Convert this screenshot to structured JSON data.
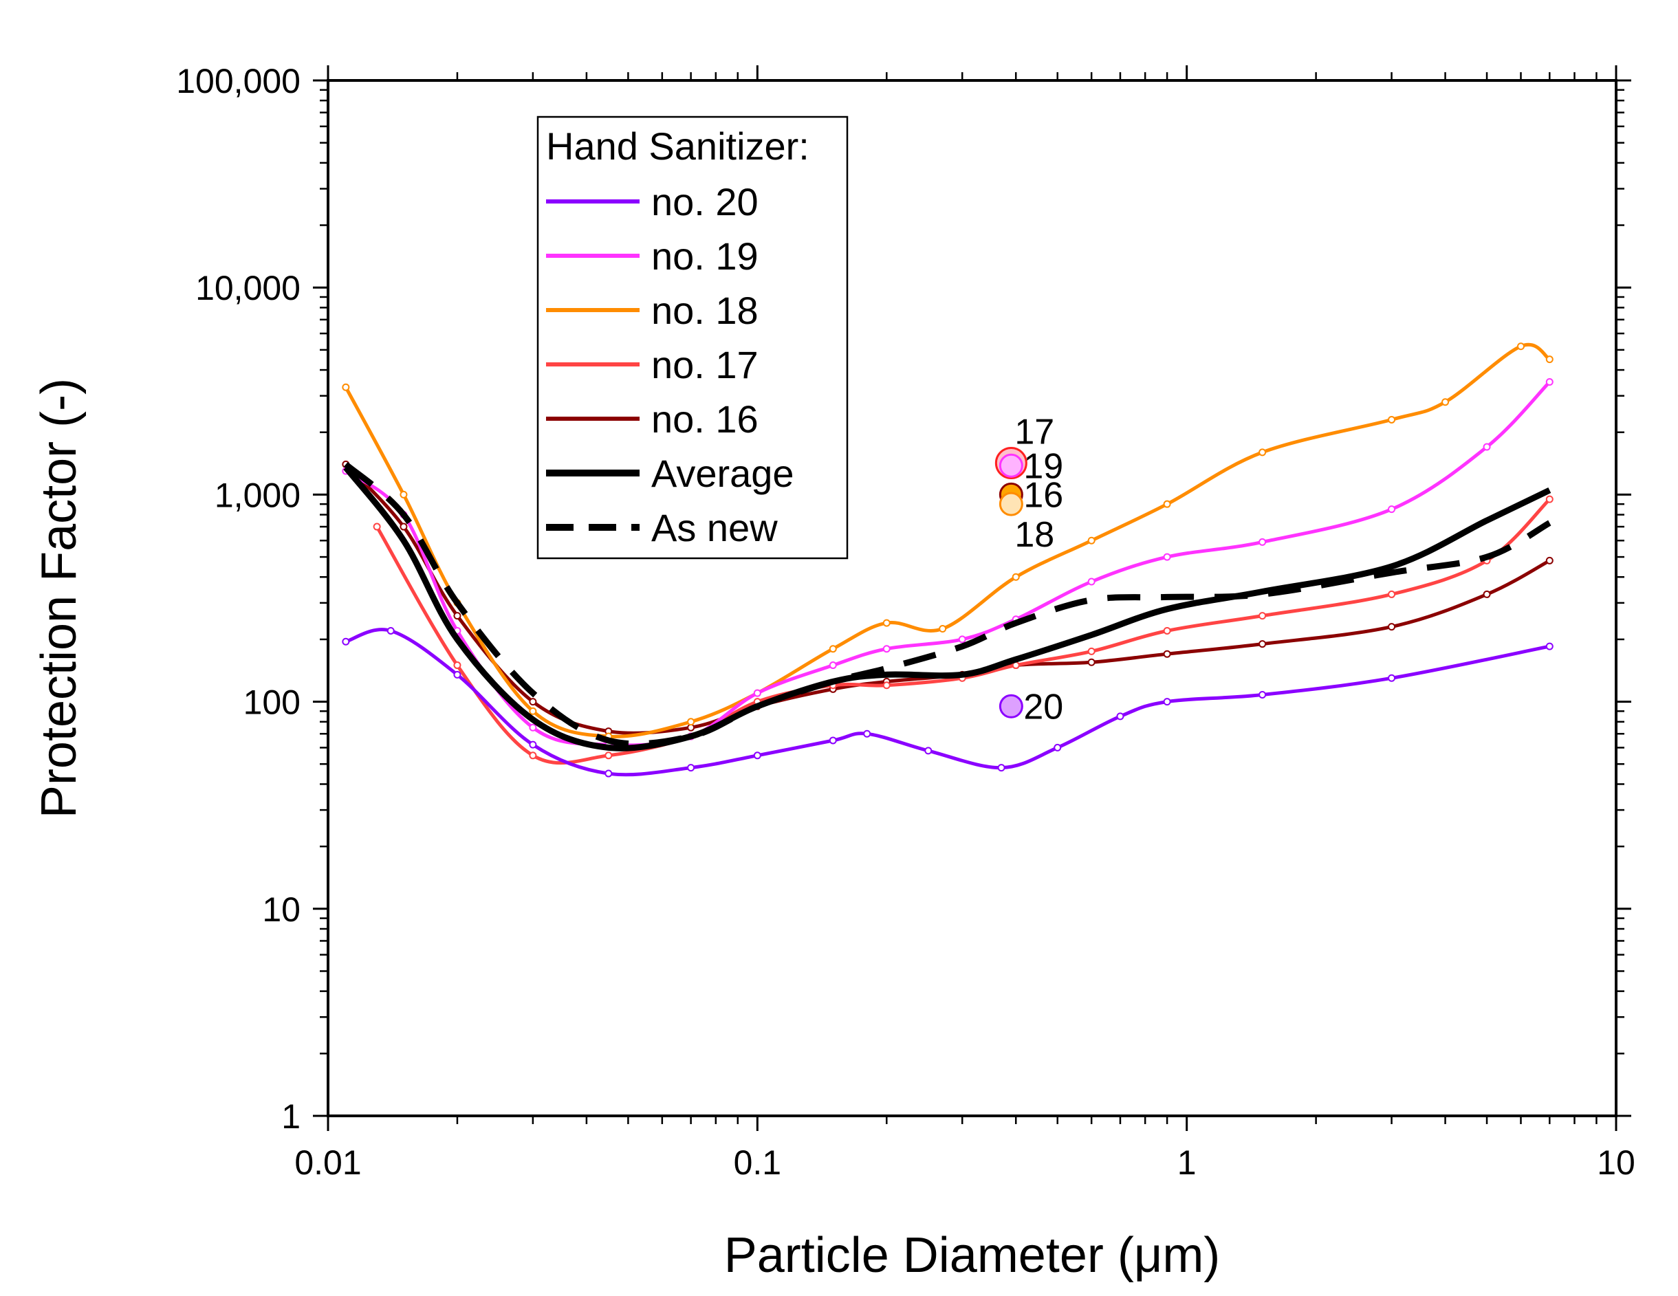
{
  "chart_data": {
    "type": "line",
    "xlabel": "Particle Diameter (μm)",
    "ylabel": "Protection Factor (-)",
    "x_scale": "log",
    "y_scale": "log",
    "xlim": [
      0.01,
      10
    ],
    "ylim": [
      1,
      100000
    ],
    "x_ticks": [
      {
        "value": 0.01,
        "label": "0.01"
      },
      {
        "value": 0.1,
        "label": "0.1"
      },
      {
        "value": 1,
        "label": "1"
      },
      {
        "value": 10,
        "label": "10"
      }
    ],
    "y_ticks": [
      {
        "value": 1,
        "label": "1"
      },
      {
        "value": 10,
        "label": "10"
      },
      {
        "value": 100,
        "label": "100"
      },
      {
        "value": 1000,
        "label": "1,000"
      },
      {
        "value": 10000,
        "label": "10,000"
      },
      {
        "value": 100000,
        "label": "100,000"
      }
    ],
    "grid": false,
    "legend": {
      "title": "Hand Sanitizer:",
      "position": "top-left"
    },
    "series": [
      {
        "name": "no. 20",
        "color": "#8B00FF",
        "style": "solid",
        "x": [
          0.011,
          0.014,
          0.02,
          0.03,
          0.045,
          0.07,
          0.1,
          0.15,
          0.18,
          0.25,
          0.37,
          0.5,
          0.7,
          0.9,
          1.5,
          3,
          7
        ],
        "y": [
          195,
          220,
          135,
          62,
          45,
          48,
          55,
          65,
          70,
          58,
          48,
          60,
          85,
          100,
          108,
          130,
          185
        ]
      },
      {
        "name": "no. 19",
        "color": "#FF33FF",
        "style": "solid",
        "x": [
          0.011,
          0.015,
          0.02,
          0.03,
          0.045,
          0.07,
          0.1,
          0.15,
          0.2,
          0.3,
          0.4,
          0.6,
          0.9,
          1.5,
          3,
          5,
          7
        ],
        "y": [
          1300,
          800,
          220,
          75,
          62,
          68,
          110,
          150,
          180,
          200,
          250,
          380,
          500,
          590,
          850,
          1700,
          3500
        ]
      },
      {
        "name": "no. 18",
        "color": "#FF8C00",
        "style": "solid",
        "x": [
          0.011,
          0.015,
          0.02,
          0.03,
          0.045,
          0.07,
          0.1,
          0.15,
          0.2,
          0.27,
          0.4,
          0.6,
          0.9,
          1.5,
          3,
          4,
          6,
          7
        ],
        "y": [
          3300,
          1000,
          300,
          90,
          68,
          80,
          110,
          180,
          240,
          225,
          400,
          600,
          900,
          1600,
          2300,
          2800,
          5200,
          4500
        ]
      },
      {
        "name": "no. 17",
        "color": "#FF4444",
        "style": "solid",
        "x": [
          0.013,
          0.02,
          0.03,
          0.045,
          0.07,
          0.1,
          0.15,
          0.2,
          0.3,
          0.4,
          0.6,
          0.9,
          1.5,
          3,
          5,
          7
        ],
        "y": [
          700,
          150,
          55,
          55,
          68,
          100,
          120,
          120,
          130,
          150,
          175,
          220,
          260,
          330,
          480,
          950
        ]
      },
      {
        "name": "no. 16",
        "color": "#8B0000",
        "style": "solid",
        "x": [
          0.011,
          0.015,
          0.02,
          0.03,
          0.045,
          0.07,
          0.1,
          0.15,
          0.2,
          0.3,
          0.4,
          0.6,
          0.9,
          1.5,
          3,
          5,
          7
        ],
        "y": [
          1400,
          700,
          260,
          100,
          72,
          75,
          95,
          115,
          125,
          135,
          150,
          155,
          170,
          190,
          230,
          330,
          480
        ]
      },
      {
        "name": "Average",
        "color": "#000000",
        "style": "solid",
        "x": [
          0.011,
          0.015,
          0.02,
          0.03,
          0.045,
          0.07,
          0.1,
          0.15,
          0.2,
          0.3,
          0.4,
          0.6,
          0.9,
          1.5,
          3,
          5,
          7
        ],
        "y": [
          1350,
          600,
          200,
          82,
          60,
          68,
          95,
          125,
          135,
          135,
          160,
          210,
          280,
          340,
          450,
          750,
          1050
        ]
      },
      {
        "name": "As new",
        "color": "#000000",
        "style": "dashed",
        "x": [
          0.011,
          0.015,
          0.02,
          0.03,
          0.045,
          0.07,
          0.1,
          0.15,
          0.2,
          0.3,
          0.4,
          0.6,
          0.9,
          1.5,
          3,
          5,
          7
        ],
        "y": [
          1400,
          800,
          300,
          110,
          65,
          68,
          95,
          125,
          145,
          185,
          240,
          310,
          320,
          330,
          420,
          500,
          730
        ]
      }
    ],
    "point_annotations": [
      {
        "label": "17",
        "x": 0.39,
        "y": 1420,
        "marker_color": "#FFC0CB",
        "marker_edge": "#FF2020",
        "label_pos": "above"
      },
      {
        "label": "19",
        "x": 0.39,
        "y": 1380,
        "marker_color": "#FFB3FF",
        "marker_edge": "#FF33FF",
        "label_pos": "right"
      },
      {
        "label": "16",
        "x": 0.39,
        "y": 1000,
        "marker_color": "#FFA500",
        "marker_edge": "#8B0000",
        "label_pos": "right"
      },
      {
        "label": "18",
        "x": 0.39,
        "y": 900,
        "marker_color": "#FFE4B5",
        "marker_edge": "#FF8C00",
        "label_pos": "below"
      },
      {
        "label": "20",
        "x": 0.39,
        "y": 95,
        "marker_color": "#DDA0FF",
        "marker_edge": "#8B00FF",
        "label_pos": "right"
      }
    ]
  }
}
